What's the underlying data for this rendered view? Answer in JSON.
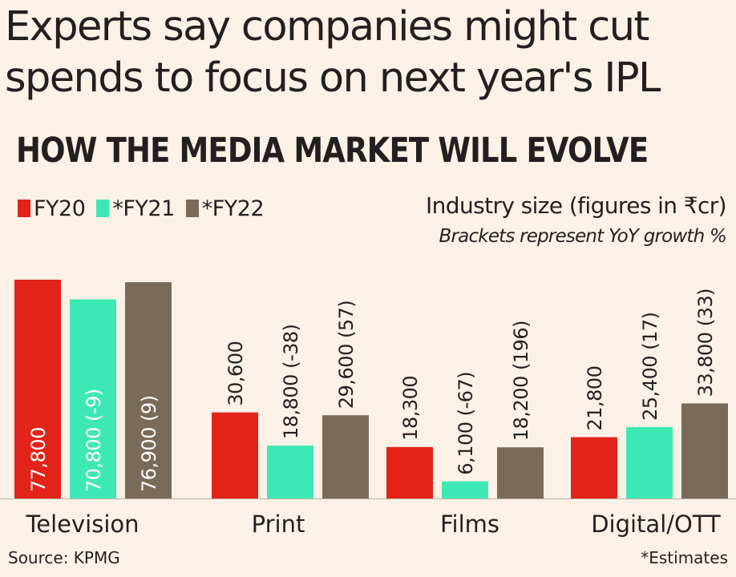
{
  "headline": {
    "line1": "Experts say companies might cut",
    "line2": "spends to focus on next year's IPL"
  },
  "chart_data": {
    "type": "bar",
    "title": "HOW THE MEDIA MARKET WILL EVOLVE",
    "subtitle": "Industry size (figures in ₹cr)",
    "note": "Brackets represent YoY growth %",
    "categories": [
      "Television",
      "Print",
      "Films",
      "Digital/OTT"
    ],
    "series": [
      {
        "name": "FY20",
        "color": "#e2231a",
        "values": [
          77800,
          30600,
          18300,
          21800
        ],
        "labels": [
          "77,800",
          "30,600",
          "18,300",
          "21,800"
        ]
      },
      {
        "name": "*FY21",
        "color": "#3ee8b5",
        "values": [
          70800,
          18800,
          6100,
          25400
        ],
        "labels": [
          "70,800 (-9)",
          "18,800 (-38)",
          "6,100  (-67)",
          "25,400 (17)"
        ]
      },
      {
        "name": "*FY22",
        "color": "#7a6a5a",
        "values": [
          76900,
          29600,
          18200,
          33800
        ],
        "labels": [
          "76,900 (9)",
          "29,600 (57)",
          "18,200 (196)",
          "33,800 (33)"
        ]
      }
    ],
    "ylim": [
      0,
      77800
    ],
    "grid": false,
    "legend": "top-left"
  },
  "footer": {
    "source": "Source: KPMG",
    "estimates": "*Estimates"
  }
}
